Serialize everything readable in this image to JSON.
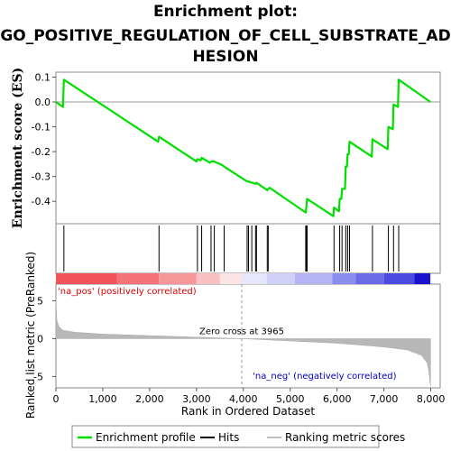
{
  "title_line1": "Enrichment plot:",
  "title_line2": "GO_POSITIVE_REGULATION_OF_CELL_SUBSTRATE_AD",
  "title_line3": "HESION",
  "chart_data": {
    "type": "line",
    "title": "Enrichment plot: GO_POSITIVE_REGULATION_OF_CELL_SUBSTRATE_ADHESION",
    "es_ylabel": "Enrichment score (ES)",
    "es_yticks": [
      0.1,
      0.0,
      -0.1,
      -0.2,
      -0.3,
      -0.4
    ],
    "es_ylim": [
      -0.49,
      0.12
    ],
    "xlim": [
      0,
      8200
    ],
    "xticks": [
      0,
      1000,
      2000,
      3000,
      4000,
      5000,
      6000,
      7000,
      8000
    ],
    "xtick_labels": [
      "0",
      "1,000",
      "2,000",
      "3,000",
      "4,000",
      "5,000",
      "6,000",
      "7,000",
      "8,000"
    ],
    "xlabel": "Rank in Ordered Dataset",
    "enrichment_profile": {
      "x": [
        0,
        150,
        170,
        2180,
        2200,
        3000,
        3020,
        3090,
        3110,
        3290,
        3310,
        3360,
        3380,
        3560,
        3590,
        4080,
        4110,
        4180,
        4200,
        4260,
        4280,
        4510,
        4530,
        4560,
        5330,
        5345,
        5360,
        5920,
        5935,
        6040,
        6055,
        6090,
        6105,
        6170,
        6185,
        6210,
        6225,
        6250,
        6265,
        6740,
        6755,
        7080,
        7095,
        7190,
        7205,
        7300,
        7315,
        7990
      ],
      "y": [
        0.0,
        -0.02,
        0.09,
        -0.16,
        -0.14,
        -0.24,
        -0.23,
        -0.235,
        -0.225,
        -0.245,
        -0.24,
        -0.24,
        -0.24,
        -0.255,
        -0.26,
        -0.32,
        -0.32,
        -0.325,
        -0.325,
        -0.33,
        -0.325,
        -0.355,
        -0.35,
        -0.345,
        -0.445,
        -0.42,
        -0.39,
        -0.46,
        -0.425,
        -0.44,
        -0.39,
        -0.39,
        -0.35,
        -0.35,
        -0.26,
        -0.26,
        -0.21,
        -0.21,
        -0.16,
        -0.22,
        -0.15,
        -0.19,
        -0.1,
        -0.11,
        -0.01,
        -0.02,
        0.09,
        0.0
      ]
    },
    "hits": [
      170,
      2200,
      3020,
      3110,
      3310,
      3380,
      3590,
      4080,
      4110,
      4180,
      4260,
      4280,
      4510,
      4530,
      5330,
      5345,
      5360,
      5935,
      6055,
      6105,
      6185,
      6225,
      6265,
      6755,
      7095,
      7205,
      7315
    ],
    "metric_ylabel": "Ranked list metric (PreRanked)",
    "metric_yticks": [
      5,
      0,
      -5
    ],
    "metric_ylim": [
      -6.5,
      7.2
    ],
    "metric_scores": {
      "x": [
        0,
        20,
        60,
        150,
        400,
        1000,
        2000,
        3000,
        3965,
        5000,
        6000,
        7000,
        7500,
        7800,
        7920,
        7960,
        7980,
        7995
      ],
      "y": [
        5.2,
        2.5,
        1.6,
        1.1,
        0.85,
        0.6,
        0.4,
        0.2,
        0.0,
        -0.3,
        -0.6,
        -1.1,
        -1.5,
        -2.2,
        -3.2,
        -4.3,
        -5.5,
        -6.3
      ]
    },
    "zero_cross_x": 3965,
    "zero_cross_label": "Zero cross at 3965",
    "pos_label": "'na_pos' (positively correlated)",
    "neg_label": "'na_neg' (negatively correlated)",
    "heatmap_segments": [
      {
        "x0": 0,
        "x1": 1300,
        "color": "#f0545a"
      },
      {
        "x0": 1300,
        "x1": 2200,
        "color": "#f47378"
      },
      {
        "x0": 2200,
        "x1": 3000,
        "color": "#f6979a"
      },
      {
        "x0": 3000,
        "x1": 3500,
        "color": "#f9c1c3"
      },
      {
        "x0": 3500,
        "x1": 3965,
        "color": "#fce3e4"
      },
      {
        "x0": 3965,
        "x1": 4500,
        "color": "#e7e7fb"
      },
      {
        "x0": 4500,
        "x1": 5100,
        "color": "#d0d0f8"
      },
      {
        "x0": 5100,
        "x1": 5900,
        "color": "#b5b5f3"
      },
      {
        "x0": 5900,
        "x1": 6400,
        "color": "#8c8cef"
      },
      {
        "x0": 6400,
        "x1": 7000,
        "color": "#6b6be8"
      },
      {
        "x0": 7000,
        "x1": 7650,
        "color": "#4b4be2"
      },
      {
        "x0": 7650,
        "x1": 7990,
        "color": "#1c12cc"
      }
    ],
    "legend": [
      {
        "label": "Enrichment profile",
        "color": "#00e000"
      },
      {
        "label": "Hits",
        "color": "#000000"
      },
      {
        "label": "Ranking metric scores",
        "color": "#c0c0c0"
      }
    ],
    "colors": {
      "profile": "#00e000",
      "hits": "#000000",
      "metric": "#b8b8b8",
      "pos_text": "#e00000",
      "neg_text": "#0000c0"
    }
  }
}
